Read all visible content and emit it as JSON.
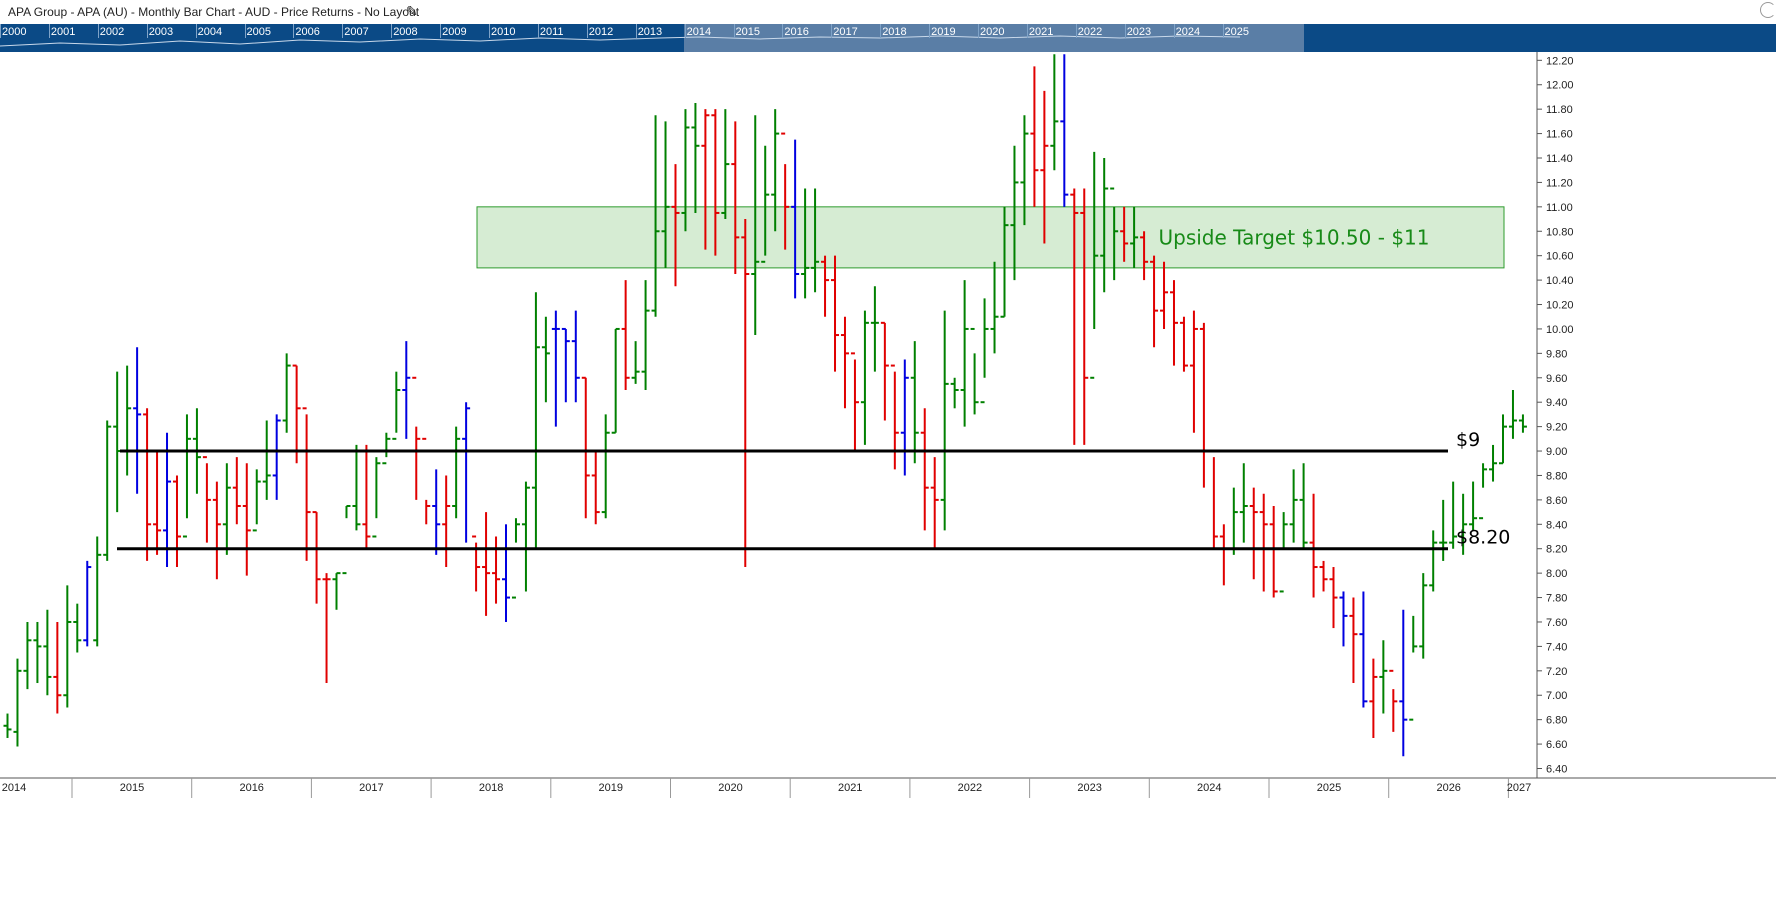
{
  "window": {
    "title": "APA Group - APA (AU) - Monthly Bar Chart - AUD - Price Returns - No Layout",
    "edit_icon": "pencil-icon"
  },
  "navigator": {
    "years": [
      "2000",
      "2001",
      "2002",
      "2003",
      "2004",
      "2005",
      "2006",
      "2007",
      "2008",
      "2009",
      "2010",
      "2011",
      "2012",
      "2013",
      "2014",
      "2015",
      "2016",
      "2017",
      "2018",
      "2019",
      "2020",
      "2021",
      "2022",
      "2023",
      "2024",
      "2025"
    ]
  },
  "chart_data": {
    "type": "ohlc",
    "title": "",
    "frequency": "monthly",
    "xlabel": "",
    "ylabel": "",
    "ylim": [
      6.3,
      12.3
    ],
    "x_tick_labels": [
      "2014",
      "2015",
      "2016",
      "2017",
      "2018",
      "2019",
      "2020",
      "2021",
      "2022",
      "2023",
      "2024",
      "2025",
      "2026",
      "2027"
    ],
    "y_tick_labels": [
      "6.40",
      "6.60",
      "6.80",
      "7.00",
      "7.20",
      "7.40",
      "7.60",
      "7.80",
      "8.00",
      "8.20",
      "8.40",
      "8.60",
      "8.80",
      "9.00",
      "9.20",
      "9.40",
      "9.60",
      "9.80",
      "10.00",
      "10.20",
      "10.40",
      "10.60",
      "10.80",
      "11.00",
      "11.20",
      "11.40",
      "11.60",
      "11.80",
      "12.00",
      "12.20"
    ],
    "grid": false,
    "colors": {
      "up": "#008000",
      "down": "#e00000",
      "neutral": "#0000e0",
      "zone_fill": "#d6ecd3",
      "zone_border": "#2e9b2e",
      "line": "#000000"
    },
    "start": "2014-01",
    "bars": [
      [
        6.75,
        6.85,
        6.65,
        6.72,
        "g"
      ],
      [
        6.7,
        7.3,
        6.58,
        7.2,
        "g"
      ],
      [
        7.2,
        7.6,
        7.05,
        7.45,
        "g"
      ],
      [
        7.45,
        7.6,
        7.1,
        7.4,
        "g"
      ],
      [
        7.4,
        7.7,
        7.0,
        7.15,
        "g"
      ],
      [
        7.15,
        7.6,
        6.85,
        7.0,
        "r"
      ],
      [
        7.0,
        7.9,
        6.9,
        7.6,
        "g"
      ],
      [
        7.6,
        7.75,
        7.35,
        7.45,
        "g"
      ],
      [
        7.45,
        8.1,
        7.4,
        8.05,
        "b"
      ],
      [
        7.45,
        8.3,
        7.4,
        8.15,
        "g"
      ],
      [
        8.15,
        9.25,
        8.1,
        9.2,
        "g"
      ],
      [
        9.2,
        9.65,
        8.5,
        9.0,
        "g"
      ],
      [
        9.0,
        9.7,
        8.8,
        9.35,
        "g"
      ],
      [
        9.35,
        9.85,
        8.65,
        9.3,
        "b"
      ],
      [
        9.3,
        9.35,
        8.1,
        8.4,
        "r"
      ],
      [
        8.4,
        9.0,
        8.15,
        8.35,
        "r"
      ],
      [
        8.35,
        9.15,
        8.05,
        8.75,
        "b"
      ],
      [
        8.75,
        8.8,
        8.05,
        8.3,
        "r"
      ],
      [
        8.3,
        9.3,
        8.45,
        9.1,
        "g"
      ],
      [
        9.1,
        9.35,
        8.65,
        8.95,
        "g"
      ],
      [
        8.95,
        8.9,
        8.25,
        8.6,
        "r"
      ],
      [
        8.6,
        8.75,
        7.95,
        8.4,
        "r"
      ],
      [
        8.4,
        8.9,
        8.15,
        8.7,
        "g"
      ],
      [
        8.7,
        8.95,
        8.4,
        8.55,
        "r"
      ],
      [
        8.55,
        8.9,
        7.98,
        8.35,
        "r"
      ],
      [
        8.35,
        8.85,
        8.4,
        8.75,
        "g"
      ],
      [
        8.75,
        9.25,
        8.6,
        8.8,
        "g"
      ],
      [
        8.8,
        9.3,
        8.6,
        9.25,
        "b"
      ],
      [
        9.25,
        9.8,
        9.15,
        9.7,
        "g"
      ],
      [
        9.7,
        9.7,
        8.9,
        9.35,
        "r"
      ],
      [
        9.35,
        9.3,
        8.1,
        8.5,
        "r"
      ],
      [
        8.5,
        8.5,
        7.75,
        7.95,
        "r"
      ],
      [
        7.95,
        8.0,
        7.1,
        7.95,
        "r"
      ],
      [
        7.95,
        8.0,
        7.7,
        8.0,
        "g"
      ],
      [
        8.0,
        8.55,
        8.45,
        8.55,
        "g"
      ],
      [
        8.55,
        9.05,
        8.35,
        8.4,
        "g"
      ],
      [
        8.4,
        9.05,
        8.2,
        8.3,
        "r"
      ],
      [
        8.3,
        8.95,
        8.45,
        8.9,
        "g"
      ],
      [
        8.9,
        9.15,
        8.95,
        9.1,
        "g"
      ],
      [
        9.1,
        9.65,
        9.15,
        9.5,
        "g"
      ],
      [
        9.5,
        9.9,
        9.1,
        9.6,
        "b"
      ],
      [
        9.6,
        9.2,
        8.6,
        9.1,
        "r"
      ],
      [
        9.1,
        8.6,
        8.4,
        8.55,
        "r"
      ],
      [
        8.55,
        8.85,
        8.15,
        8.4,
        "b"
      ],
      [
        8.4,
        8.8,
        8.05,
        8.55,
        "r"
      ],
      [
        8.55,
        9.2,
        8.45,
        9.1,
        "g"
      ],
      [
        9.1,
        9.4,
        8.25,
        9.35,
        "b"
      ],
      [
        8.3,
        8.25,
        7.85,
        8.05,
        "r"
      ],
      [
        8.05,
        8.5,
        7.65,
        8.0,
        "r"
      ],
      [
        8.0,
        8.3,
        7.75,
        7.95,
        "r"
      ],
      [
        7.95,
        8.4,
        7.6,
        7.8,
        "b"
      ],
      [
        7.8,
        8.45,
        8.25,
        8.4,
        "g"
      ],
      [
        8.4,
        8.75,
        7.85,
        8.7,
        "g"
      ],
      [
        8.7,
        10.3,
        8.2,
        9.85,
        "g"
      ],
      [
        9.85,
        10.1,
        9.4,
        9.8,
        "g"
      ],
      [
        10.0,
        10.15,
        9.2,
        10.0,
        "b"
      ],
      [
        10.0,
        10.0,
        9.4,
        9.9,
        "b"
      ],
      [
        9.9,
        10.15,
        9.4,
        9.6,
        "b"
      ],
      [
        9.6,
        9.6,
        8.45,
        8.8,
        "r"
      ],
      [
        8.8,
        9.0,
        8.4,
        8.5,
        "r"
      ],
      [
        8.5,
        9.3,
        8.45,
        9.15,
        "g"
      ],
      [
        9.15,
        10.0,
        9.15,
        10.0,
        "g"
      ],
      [
        10.0,
        10.4,
        9.5,
        9.6,
        "r"
      ],
      [
        9.6,
        9.9,
        9.55,
        9.65,
        "g"
      ],
      [
        9.65,
        10.4,
        9.5,
        10.15,
        "g"
      ],
      [
        10.15,
        11.75,
        10.1,
        10.8,
        "g"
      ],
      [
        10.8,
        11.7,
        10.5,
        11.0,
        "g"
      ],
      [
        11.0,
        11.35,
        10.35,
        10.95,
        "r"
      ],
      [
        10.95,
        11.8,
        10.8,
        11.65,
        "g"
      ],
      [
        11.65,
        11.85,
        10.95,
        11.5,
        "g"
      ],
      [
        11.5,
        11.8,
        10.65,
        11.75,
        "r"
      ],
      [
        11.75,
        11.8,
        10.6,
        10.95,
        "r"
      ],
      [
        10.95,
        11.8,
        10.9,
        11.35,
        "g"
      ],
      [
        11.35,
        11.7,
        10.45,
        10.75,
        "r"
      ],
      [
        10.75,
        10.9,
        8.05,
        10.45,
        "r"
      ],
      [
        10.45,
        11.75,
        9.95,
        10.55,
        "g"
      ],
      [
        10.55,
        11.5,
        10.6,
        11.1,
        "g"
      ],
      [
        11.1,
        11.8,
        10.8,
        11.6,
        "g"
      ],
      [
        11.6,
        11.35,
        10.65,
        11.0,
        "r"
      ],
      [
        11.0,
        11.55,
        10.25,
        10.45,
        "b"
      ],
      [
        10.45,
        11.15,
        10.25,
        10.5,
        "g"
      ],
      [
        10.5,
        11.15,
        10.3,
        10.55,
        "g"
      ],
      [
        10.55,
        10.6,
        10.1,
        10.4,
        "r"
      ],
      [
        10.4,
        10.6,
        9.65,
        9.95,
        "r"
      ],
      [
        9.95,
        10.1,
        9.35,
        9.8,
        "r"
      ],
      [
        9.8,
        9.75,
        9.0,
        9.4,
        "r"
      ],
      [
        9.4,
        10.15,
        9.05,
        10.05,
        "g"
      ],
      [
        10.05,
        10.35,
        9.65,
        10.05,
        "g"
      ],
      [
        10.05,
        10.05,
        9.25,
        9.7,
        "r"
      ],
      [
        9.7,
        9.65,
        8.85,
        9.15,
        "r"
      ],
      [
        9.15,
        9.75,
        8.8,
        9.6,
        "b"
      ],
      [
        9.6,
        9.9,
        8.9,
        9.15,
        "g"
      ],
      [
        9.15,
        9.35,
        8.35,
        8.7,
        "r"
      ],
      [
        8.7,
        8.95,
        8.2,
        8.6,
        "r"
      ],
      [
        8.6,
        10.15,
        8.35,
        9.55,
        "g"
      ],
      [
        9.55,
        9.6,
        9.35,
        9.5,
        "g"
      ],
      [
        9.5,
        10.4,
        9.2,
        10.0,
        "g"
      ],
      [
        10.0,
        9.8,
        9.3,
        9.4,
        "g"
      ],
      [
        9.4,
        10.25,
        9.6,
        10.0,
        "g"
      ],
      [
        10.0,
        10.55,
        9.8,
        10.1,
        "g"
      ],
      [
        10.1,
        11.0,
        10.1,
        10.85,
        "g"
      ],
      [
        10.85,
        11.5,
        10.4,
        11.2,
        "g"
      ],
      [
        11.2,
        11.75,
        10.85,
        11.6,
        "g"
      ],
      [
        11.6,
        12.15,
        11.0,
        11.3,
        "r"
      ],
      [
        11.3,
        11.95,
        10.7,
        11.5,
        "r"
      ],
      [
        11.5,
        12.25,
        11.3,
        11.7,
        "g"
      ],
      [
        11.7,
        12.25,
        11.0,
        11.1,
        "b"
      ],
      [
        11.1,
        11.15,
        9.05,
        10.95,
        "r"
      ],
      [
        10.95,
        11.15,
        9.05,
        9.6,
        "r"
      ],
      [
        9.6,
        11.45,
        10.0,
        10.6,
        "g"
      ],
      [
        10.6,
        11.4,
        10.3,
        11.15,
        "g"
      ],
      [
        11.15,
        11.0,
        10.4,
        10.8,
        "g"
      ],
      [
        10.8,
        11.0,
        10.55,
        10.7,
        "r"
      ],
      [
        10.7,
        11.0,
        10.5,
        10.75,
        "g"
      ],
      [
        10.75,
        10.8,
        10.4,
        10.55,
        "r"
      ],
      [
        10.55,
        10.6,
        9.85,
        10.15,
        "r"
      ],
      [
        10.15,
        10.55,
        10.0,
        10.3,
        "r"
      ],
      [
        10.3,
        10.4,
        9.7,
        10.05,
        "r"
      ],
      [
        10.05,
        10.1,
        9.65,
        9.7,
        "r"
      ],
      [
        9.7,
        10.15,
        9.15,
        10.0,
        "r"
      ],
      [
        10.0,
        10.05,
        8.7,
        9.0,
        "r"
      ],
      [
        9.0,
        8.95,
        8.2,
        8.3,
        "r"
      ],
      [
        8.3,
        8.4,
        7.9,
        8.2,
        "r"
      ],
      [
        8.2,
        8.7,
        8.15,
        8.5,
        "g"
      ],
      [
        8.5,
        8.9,
        8.25,
        8.55,
        "g"
      ],
      [
        8.55,
        8.7,
        7.95,
        8.5,
        "r"
      ],
      [
        8.5,
        8.65,
        7.85,
        8.4,
        "r"
      ],
      [
        8.4,
        8.55,
        7.8,
        7.85,
        "r"
      ],
      [
        7.85,
        8.5,
        8.2,
        8.4,
        "g"
      ],
      [
        8.4,
        8.85,
        8.25,
        8.6,
        "g"
      ],
      [
        8.6,
        8.9,
        8.2,
        8.25,
        "g"
      ],
      [
        8.25,
        8.65,
        7.8,
        8.05,
        "r"
      ],
      [
        8.05,
        8.1,
        7.85,
        7.95,
        "r"
      ],
      [
        7.95,
        8.05,
        7.55,
        7.8,
        "r"
      ],
      [
        7.8,
        7.85,
        7.4,
        7.65,
        "b"
      ],
      [
        7.65,
        7.8,
        7.1,
        7.5,
        "r"
      ],
      [
        7.5,
        7.85,
        6.9,
        6.95,
        "b"
      ],
      [
        6.95,
        7.3,
        6.65,
        7.15,
        "r"
      ],
      [
        7.15,
        7.45,
        6.85,
        7.2,
        "g"
      ],
      [
        7.2,
        7.05,
        6.7,
        6.95,
        "r"
      ],
      [
        6.95,
        7.7,
        6.5,
        6.8,
        "b"
      ],
      [
        6.8,
        7.65,
        7.35,
        7.4,
        "g"
      ],
      [
        7.4,
        8.0,
        7.3,
        7.9,
        "g"
      ],
      [
        7.9,
        8.35,
        7.85,
        8.25,
        "g"
      ],
      [
        8.25,
        8.6,
        8.1,
        8.25,
        "g"
      ],
      [
        8.25,
        8.75,
        8.2,
        8.3,
        "g"
      ],
      [
        8.3,
        8.65,
        8.15,
        8.4,
        "g"
      ],
      [
        8.4,
        8.75,
        8.35,
        8.45,
        "g"
      ],
      [
        8.45,
        8.9,
        8.7,
        8.85,
        "g"
      ],
      [
        8.85,
        9.05,
        8.75,
        8.9,
        "g"
      ],
      [
        8.9,
        9.3,
        8.9,
        9.2,
        "g"
      ],
      [
        9.2,
        9.5,
        9.1,
        9.25,
        "g"
      ],
      [
        9.25,
        9.3,
        9.15,
        9.2,
        "g"
      ]
    ],
    "zone": {
      "low": 10.5,
      "high": 11.0,
      "label": "Upside Target $10.50 - $11"
    },
    "hlines": [
      {
        "value": 9.0,
        "label": "$9"
      },
      {
        "value": 8.2,
        "label": "$8.20"
      }
    ]
  }
}
